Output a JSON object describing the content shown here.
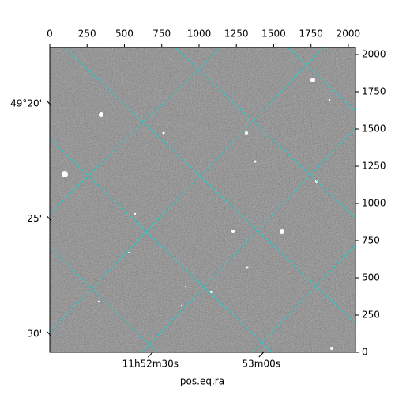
{
  "chart_data": {
    "type": "image",
    "xlabel": "pos.eq.ra",
    "xlim": [
      0,
      2048
    ],
    "ylim": [
      0,
      2048
    ],
    "xticks": [
      0,
      250,
      500,
      750,
      1000,
      1250,
      1500,
      1750,
      2000
    ],
    "yticks": [
      0,
      250,
      500,
      750,
      1000,
      1250,
      1500,
      1750,
      2000
    ],
    "ra_ticks": [
      {
        "value": 674,
        "label": "11h52m30s"
      },
      {
        "value": 1417,
        "label": "53m00s"
      }
    ],
    "dec_ticks": [
      {
        "value": 1671,
        "label": "49°20'"
      },
      {
        "value": 897,
        "label": "25'"
      },
      {
        "value": 122,
        "label": "30'"
      }
    ],
    "grid_color": "#00d8d8"
  }
}
